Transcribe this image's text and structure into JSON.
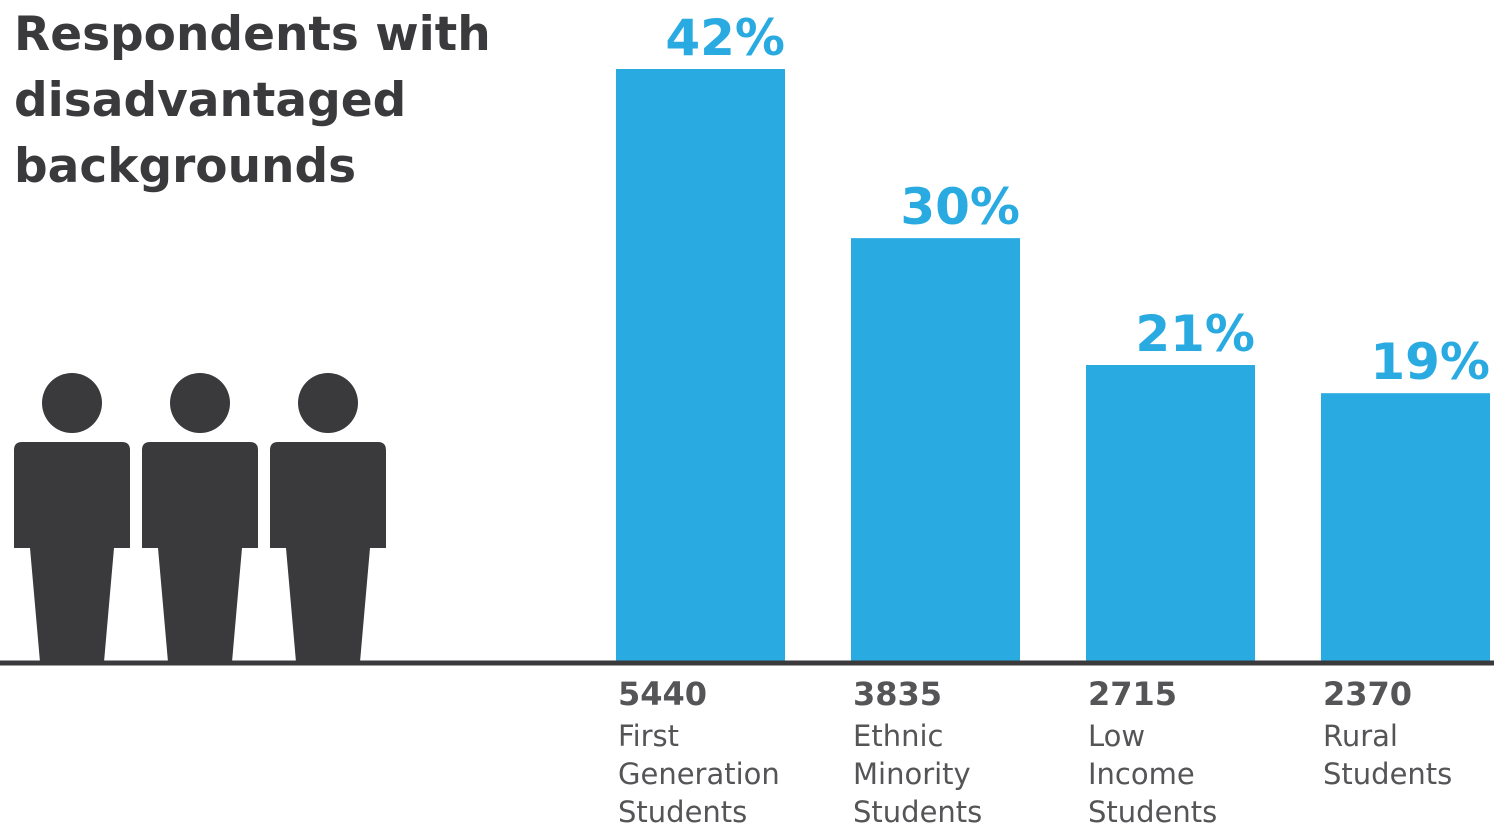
{
  "chart_data": {
    "type": "bar",
    "title": "Respondents with disadvantaged backgrounds",
    "title_lines": [
      "Respondents with",
      "disadvantaged",
      "backgrounds"
    ],
    "categories": [
      "First Generation Students",
      "Ethnic Minority Students",
      "Low Income Students",
      "Rural Students"
    ],
    "category_lines": [
      [
        "First",
        "Generation",
        "Students"
      ],
      [
        "Ethnic",
        "Minority",
        "Students"
      ],
      [
        "Low",
        "Income",
        "Students"
      ],
      [
        "Rural",
        "Students"
      ]
    ],
    "values": [
      42,
      30,
      21,
      19
    ],
    "value_labels": [
      "42%",
      "30%",
      "21%",
      "19%"
    ],
    "counts": [
      "5440",
      "3835",
      "2715",
      "2370"
    ],
    "ylim": [
      0,
      42
    ],
    "grid": false,
    "xlabel": "",
    "ylabel": ""
  },
  "colors": {
    "bar": "#29abe2",
    "title": "#3a3a3c",
    "text": "#555558",
    "baseline": "#3a3a3c",
    "people": "#3a3a3c"
  },
  "icons": [
    "person-icon",
    "person-icon",
    "person-icon"
  ]
}
